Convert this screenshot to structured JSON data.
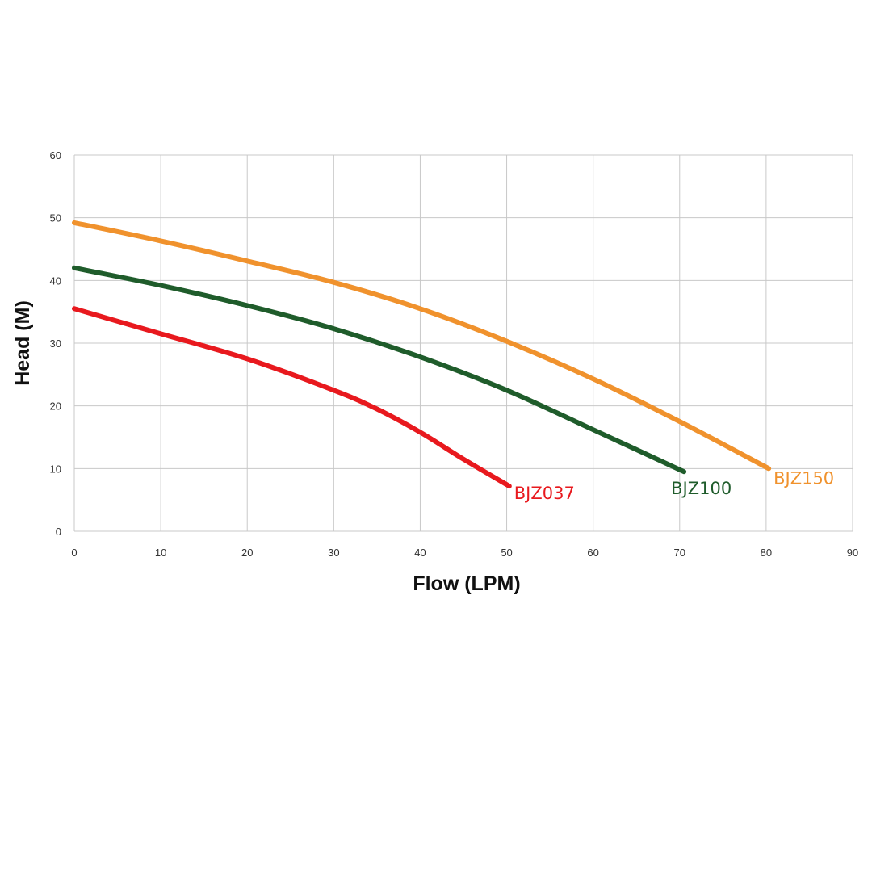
{
  "chart_data": {
    "type": "line",
    "title": "",
    "xlabel": "Flow (LPM)",
    "ylabel": "Head (M)",
    "xlim": [
      0,
      90
    ],
    "ylim": [
      0,
      60
    ],
    "xticks": [
      "0",
      "10",
      "20",
      "30",
      "40",
      "50",
      "60",
      "70",
      "80",
      "90"
    ],
    "yticks": [
      "0",
      "10",
      "20",
      "30",
      "40",
      "50",
      "60"
    ],
    "grid": true,
    "legend": "inline labels at line ends",
    "series": [
      {
        "name": "BJZ037",
        "color": "#e8191e",
        "x": [
          0,
          10,
          20,
          30,
          35,
          40,
          45,
          50.3
        ],
        "y": [
          35.5,
          31.5,
          27.5,
          22.5,
          19.5,
          15.8,
          11.5,
          7.2
        ]
      },
      {
        "name": "BJZ100",
        "color": "#1f5c2b",
        "x": [
          0,
          10,
          20,
          30,
          40,
          50,
          60,
          70.5
        ],
        "y": [
          42,
          39.2,
          36,
          32.3,
          27.8,
          22.5,
          16.2,
          9.5
        ]
      },
      {
        "name": "BJZ150",
        "color": "#f0922d",
        "x": [
          0,
          10,
          20,
          30,
          40,
          50,
          60,
          70,
          80.3
        ],
        "y": [
          49.2,
          46.3,
          43.1,
          39.7,
          35.5,
          30.3,
          24.3,
          17.5,
          10
        ]
      }
    ]
  }
}
